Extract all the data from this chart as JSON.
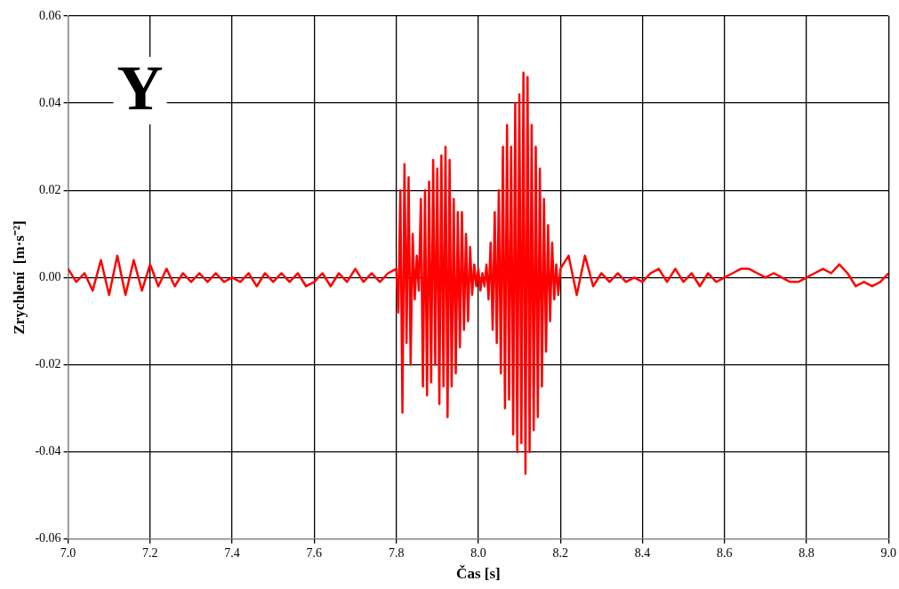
{
  "chart_data": {
    "type": "line",
    "xlabel": "Čas [s]",
    "ylabel": "Zrychlení  [m·s⁻²]",
    "annotations": [
      "Y"
    ],
    "xlim": [
      7.0,
      9.0
    ],
    "xticks": [
      {
        "value": 7.0,
        "label": "7.0"
      },
      {
        "value": 7.2,
        "label": "7.2"
      },
      {
        "value": 7.4,
        "label": "7.4"
      },
      {
        "value": 7.6,
        "label": "7.6"
      },
      {
        "value": 7.8,
        "label": "7.8"
      },
      {
        "value": 8.0,
        "label": "8.0"
      },
      {
        "value": 8.2,
        "label": "8.2"
      },
      {
        "value": 8.4,
        "label": "8.4"
      },
      {
        "value": 8.6,
        "label": "8.6"
      },
      {
        "value": 8.8,
        "label": "8.8"
      },
      {
        "value": 9.0,
        "label": "9.0"
      }
    ],
    "ylim": [
      -0.06,
      0.06
    ],
    "yticks": [
      {
        "value": -0.06,
        "label": "-0.06"
      },
      {
        "value": -0.04,
        "label": "-0.04"
      },
      {
        "value": -0.02,
        "label": "-0.02"
      },
      {
        "value": 0,
        "label": "0.00"
      },
      {
        "value": 0.02,
        "label": "0.02"
      },
      {
        "value": 0.04,
        "label": "0.04"
      },
      {
        "value": 0.06,
        "label": "0.06"
      }
    ],
    "grid": true,
    "legend": false,
    "x": [
      7.0,
      7.02,
      7.04,
      7.06,
      7.08,
      7.1,
      7.12,
      7.14,
      7.16,
      7.18,
      7.2,
      7.22,
      7.24,
      7.26,
      7.28,
      7.3,
      7.32,
      7.34,
      7.36,
      7.38,
      7.4,
      7.42,
      7.44,
      7.46,
      7.48,
      7.5,
      7.52,
      7.54,
      7.56,
      7.58,
      7.6,
      7.62,
      7.64,
      7.66,
      7.68,
      7.7,
      7.72,
      7.74,
      7.76,
      7.78,
      7.8,
      7.805,
      7.81,
      7.815,
      7.82,
      7.825,
      7.83,
      7.835,
      7.84,
      7.845,
      7.85,
      7.855,
      7.86,
      7.865,
      7.87,
      7.875,
      7.88,
      7.885,
      7.89,
      7.895,
      7.9,
      7.905,
      7.91,
      7.915,
      7.92,
      7.925,
      7.93,
      7.935,
      7.94,
      7.945,
      7.95,
      7.955,
      7.96,
      7.965,
      7.97,
      7.975,
      7.98,
      7.985,
      7.99,
      7.995,
      8.0,
      8.005,
      8.01,
      8.015,
      8.02,
      8.025,
      8.03,
      8.035,
      8.04,
      8.045,
      8.05,
      8.055,
      8.06,
      8.065,
      8.07,
      8.075,
      8.08,
      8.085,
      8.09,
      8.095,
      8.1,
      8.105,
      8.11,
      8.115,
      8.12,
      8.125,
      8.13,
      8.135,
      8.14,
      8.145,
      8.15,
      8.155,
      8.16,
      8.165,
      8.17,
      8.175,
      8.18,
      8.185,
      8.19,
      8.195,
      8.2,
      8.22,
      8.24,
      8.26,
      8.28,
      8.3,
      8.32,
      8.34,
      8.36,
      8.38,
      8.4,
      8.42,
      8.44,
      8.46,
      8.48,
      8.5,
      8.52,
      8.54,
      8.56,
      8.58,
      8.6,
      8.62,
      8.64,
      8.66,
      8.68,
      8.7,
      8.72,
      8.74,
      8.76,
      8.78,
      8.8,
      8.82,
      8.84,
      8.86,
      8.88,
      8.9,
      8.92,
      8.94,
      8.96,
      8.98,
      9.0
    ],
    "series": [
      {
        "color": "#ff0000",
        "values": [
          0.002,
          -0.001,
          0.001,
          -0.003,
          0.004,
          -0.004,
          0.005,
          -0.004,
          0.004,
          -0.003,
          0.003,
          -0.002,
          0.002,
          -0.002,
          0.001,
          -0.001,
          0.001,
          -0.001,
          0.001,
          -0.001,
          0.0,
          -0.001,
          0.001,
          -0.002,
          0.001,
          -0.001,
          0.001,
          -0.001,
          0.001,
          -0.002,
          -0.001,
          0.001,
          -0.002,
          0.001,
          -0.001,
          0.002,
          -0.001,
          0.001,
          -0.001,
          0.001,
          0.002,
          -0.008,
          0.02,
          -0.031,
          0.026,
          -0.015,
          0.023,
          -0.02,
          0.01,
          -0.005,
          0.005,
          -0.003,
          0.018,
          -0.025,
          0.02,
          -0.027,
          0.022,
          -0.024,
          0.027,
          -0.02,
          0.025,
          -0.029,
          0.028,
          -0.025,
          0.03,
          -0.032,
          0.027,
          -0.025,
          0.018,
          -0.022,
          0.015,
          -0.016,
          0.015,
          -0.012,
          0.01,
          -0.01,
          0.007,
          -0.004,
          0.003,
          -0.002,
          0.002,
          -0.003,
          0.001,
          -0.002,
          0.003,
          -0.005,
          0.008,
          -0.012,
          0.015,
          -0.015,
          0.02,
          -0.022,
          0.03,
          -0.03,
          0.035,
          -0.028,
          0.03,
          -0.036,
          0.04,
          -0.04,
          0.042,
          -0.038,
          0.047,
          -0.045,
          0.046,
          -0.04,
          0.035,
          -0.035,
          0.03,
          -0.032,
          0.025,
          -0.025,
          0.018,
          -0.017,
          0.012,
          -0.01,
          0.008,
          -0.005,
          0.003,
          -0.004,
          0.002,
          0.005,
          -0.004,
          0.005,
          -0.002,
          0.001,
          -0.001,
          0.001,
          -0.001,
          0.0,
          -0.001,
          0.001,
          0.002,
          -0.001,
          0.002,
          -0.001,
          0.001,
          -0.002,
          0.001,
          -0.001,
          0.0,
          0.001,
          0.002,
          0.002,
          0.001,
          0.0,
          0.001,
          0.0,
          -0.001,
          -0.001,
          0.0,
          0.001,
          0.002,
          0.001,
          0.003,
          0.001,
          -0.002,
          -0.001,
          -0.002,
          -0.001,
          0.001
        ]
      }
    ]
  }
}
